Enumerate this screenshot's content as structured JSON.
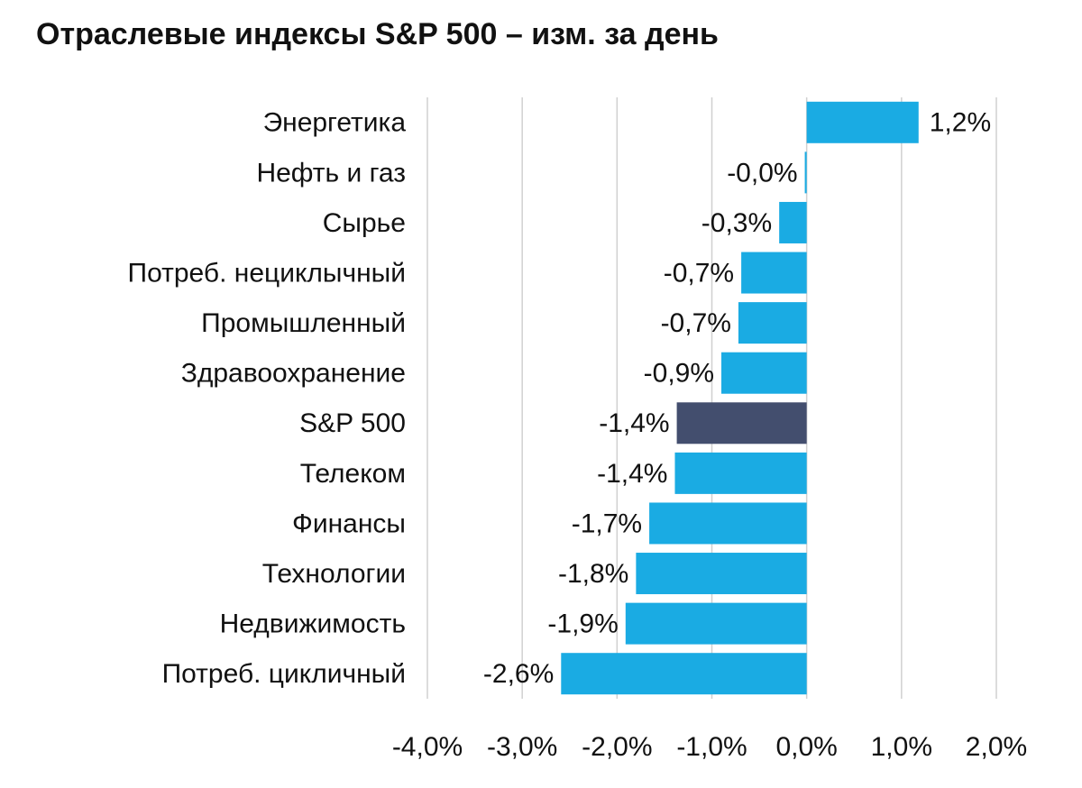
{
  "chart_data": {
    "type": "barh",
    "title": "Отраслевые индексы S&P 500 – изм. за день",
    "categories": [
      "Энергетика",
      "Нефть и газ",
      "Сырье",
      "Потреб. нециклычный",
      "Промышленный",
      "Здравоохранение",
      "S&P 500",
      "Телеком",
      "Финансы",
      "Технологии",
      "Недвижимость",
      "Потреб. цикличный"
    ],
    "values": [
      1.18,
      -0.02,
      -0.29,
      -0.69,
      -0.72,
      -0.9,
      -1.37,
      -1.39,
      -1.66,
      -1.8,
      -1.91,
      -2.59
    ],
    "value_labels": [
      "1,2%",
      "-0,0%",
      "-0,3%",
      "-0,7%",
      "-0,7%",
      "-0,9%",
      "-1,4%",
      "-1,4%",
      "-1,7%",
      "-1,8%",
      "-1,9%",
      "-2,6%"
    ],
    "colors": [
      "#1aabe3",
      "#1aabe3",
      "#1aabe3",
      "#1aabe3",
      "#1aabe3",
      "#1aabe3",
      "#434e6e",
      "#1aabe3",
      "#1aabe3",
      "#1aabe3",
      "#1aabe3",
      "#1aabe3"
    ],
    "xlim": [
      -4,
      2
    ],
    "xticks": [
      {
        "value": -4,
        "label": "-4,0%"
      },
      {
        "value": -3,
        "label": "-3,0%"
      },
      {
        "value": -2,
        "label": "-2,0%"
      },
      {
        "value": -1,
        "label": "-1,0%"
      },
      {
        "value": 0,
        "label": "0,0%"
      },
      {
        "value": 1,
        "label": "1,0%"
      },
      {
        "value": 2,
        "label": "2,0%"
      }
    ],
    "grid": true
  }
}
